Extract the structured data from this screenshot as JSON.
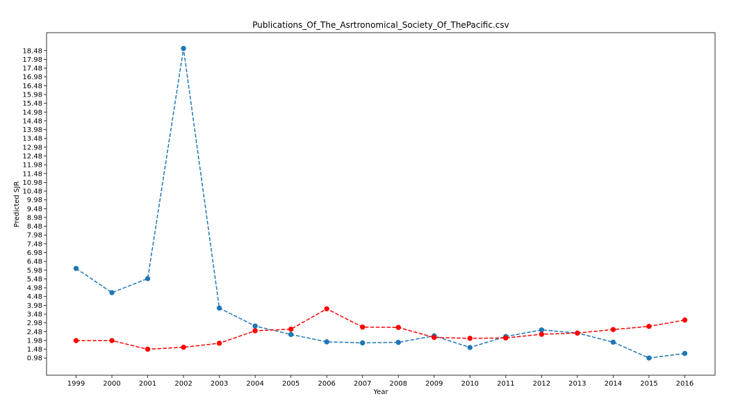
{
  "chart_data": {
    "type": "line",
    "title": "Publications_Of_The_Asrtronomical_Society_Of_ThePacific.csv",
    "xlabel": "Year",
    "ylabel": "Predicted SJR",
    "categories": [
      "1999",
      "2000",
      "2001",
      "2002",
      "2003",
      "2004",
      "2005",
      "2006",
      "2007",
      "2008",
      "2009",
      "2010",
      "2011",
      "2012",
      "2013",
      "2014",
      "2015",
      "2016"
    ],
    "y_ticks": [
      "0.98",
      "1.48",
      "1.98",
      "2.48",
      "2.98",
      "3.48",
      "3.98",
      "4.48",
      "4.98",
      "5.48",
      "5.98",
      "6.48",
      "6.98",
      "7.48",
      "7.98",
      "8.48",
      "8.98",
      "9.48",
      "9.98",
      "10.48",
      "10.98",
      "11.48",
      "11.98",
      "12.48",
      "12.98",
      "13.48",
      "13.98",
      "14.48",
      "14.98",
      "15.48",
      "15.98",
      "16.48",
      "16.98",
      "17.48",
      "17.98",
      "18.48"
    ],
    "ylim": [
      0.0,
      19.5
    ],
    "grid": false,
    "series": [
      {
        "color": "#1f77b4",
        "line_style": "dashed",
        "marker": "circle",
        "values": [
          6.08,
          4.7,
          5.5,
          18.6,
          3.82,
          2.8,
          2.32,
          1.9,
          1.84,
          1.87,
          2.24,
          1.58,
          2.2,
          2.58,
          2.4,
          1.88,
          0.98,
          1.24
        ]
      },
      {
        "color": "#ff0000",
        "line_style": "dashed",
        "marker": "circle",
        "values": [
          1.97,
          1.97,
          1.48,
          1.59,
          1.82,
          2.53,
          2.62,
          3.78,
          2.74,
          2.72,
          2.15,
          2.1,
          2.12,
          2.33,
          2.4,
          2.6,
          2.78,
          3.14
        ]
      }
    ]
  }
}
